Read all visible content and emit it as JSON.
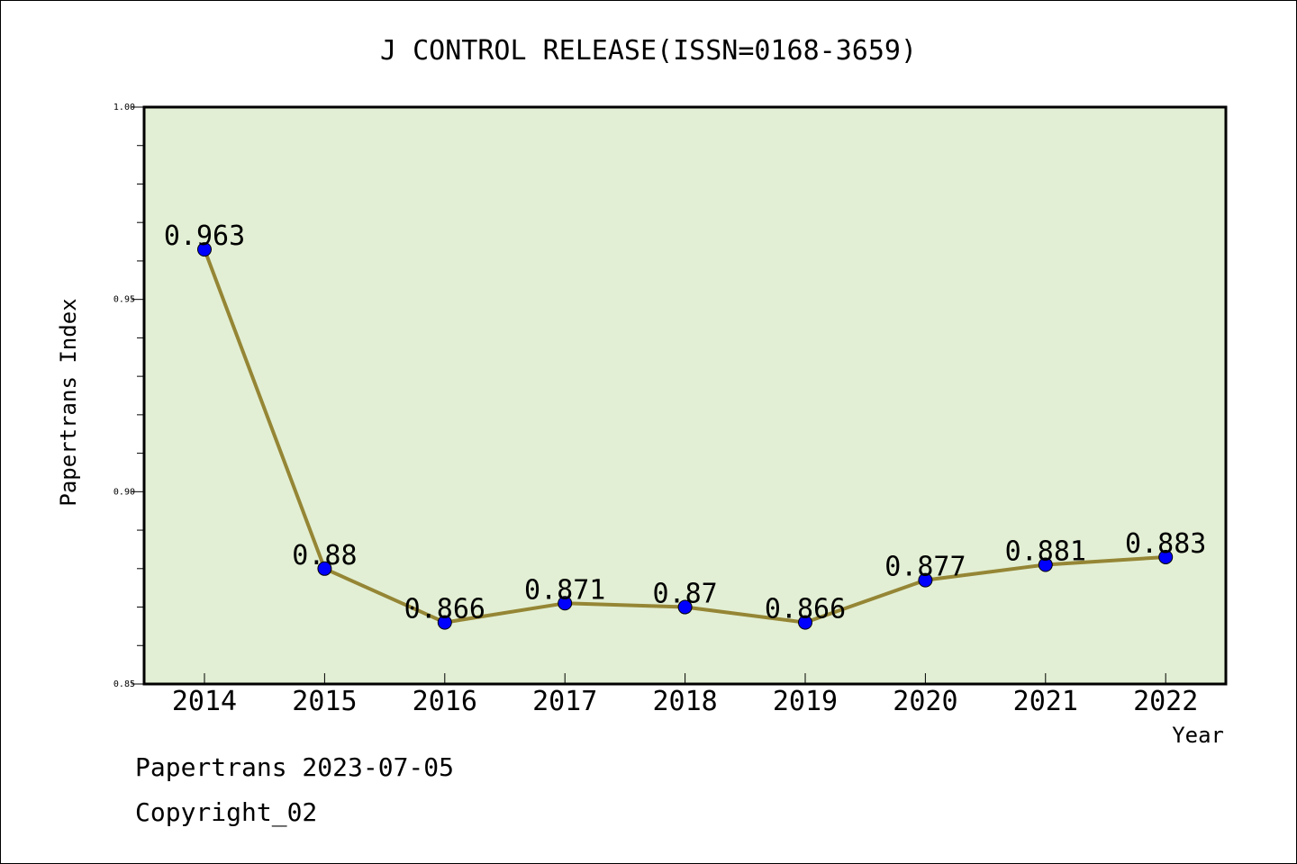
{
  "chart_data": {
    "type": "line",
    "title": "J CONTROL RELEASE(ISSN=0168-3659)",
    "xlabel": "Year",
    "ylabel": "Papertrans Index",
    "categories": [
      "2014",
      "2015",
      "2016",
      "2017",
      "2018",
      "2019",
      "2020",
      "2021",
      "2022"
    ],
    "series": [
      {
        "values": [
          0.963,
          0.88,
          0.866,
          0.871,
          0.87,
          0.866,
          0.877,
          0.881,
          0.883
        ],
        "labels": [
          "0.963",
          "0.88",
          "0.866",
          "0.871",
          "0.87",
          "0.866",
          "0.877",
          "0.881",
          "0.883"
        ]
      }
    ],
    "ylim": [
      0.85,
      1.0
    ],
    "yticks": [
      "0.85",
      "0.90",
      "0.95",
      "1.00"
    ],
    "grid": false,
    "legend": "none",
    "colors": {
      "plot_background": "#e2efd4",
      "line": "#958635",
      "marker": "#0000ff"
    }
  },
  "footer": {
    "line1": "Papertrans 2023-07-05",
    "line2": "Copyright_02"
  }
}
